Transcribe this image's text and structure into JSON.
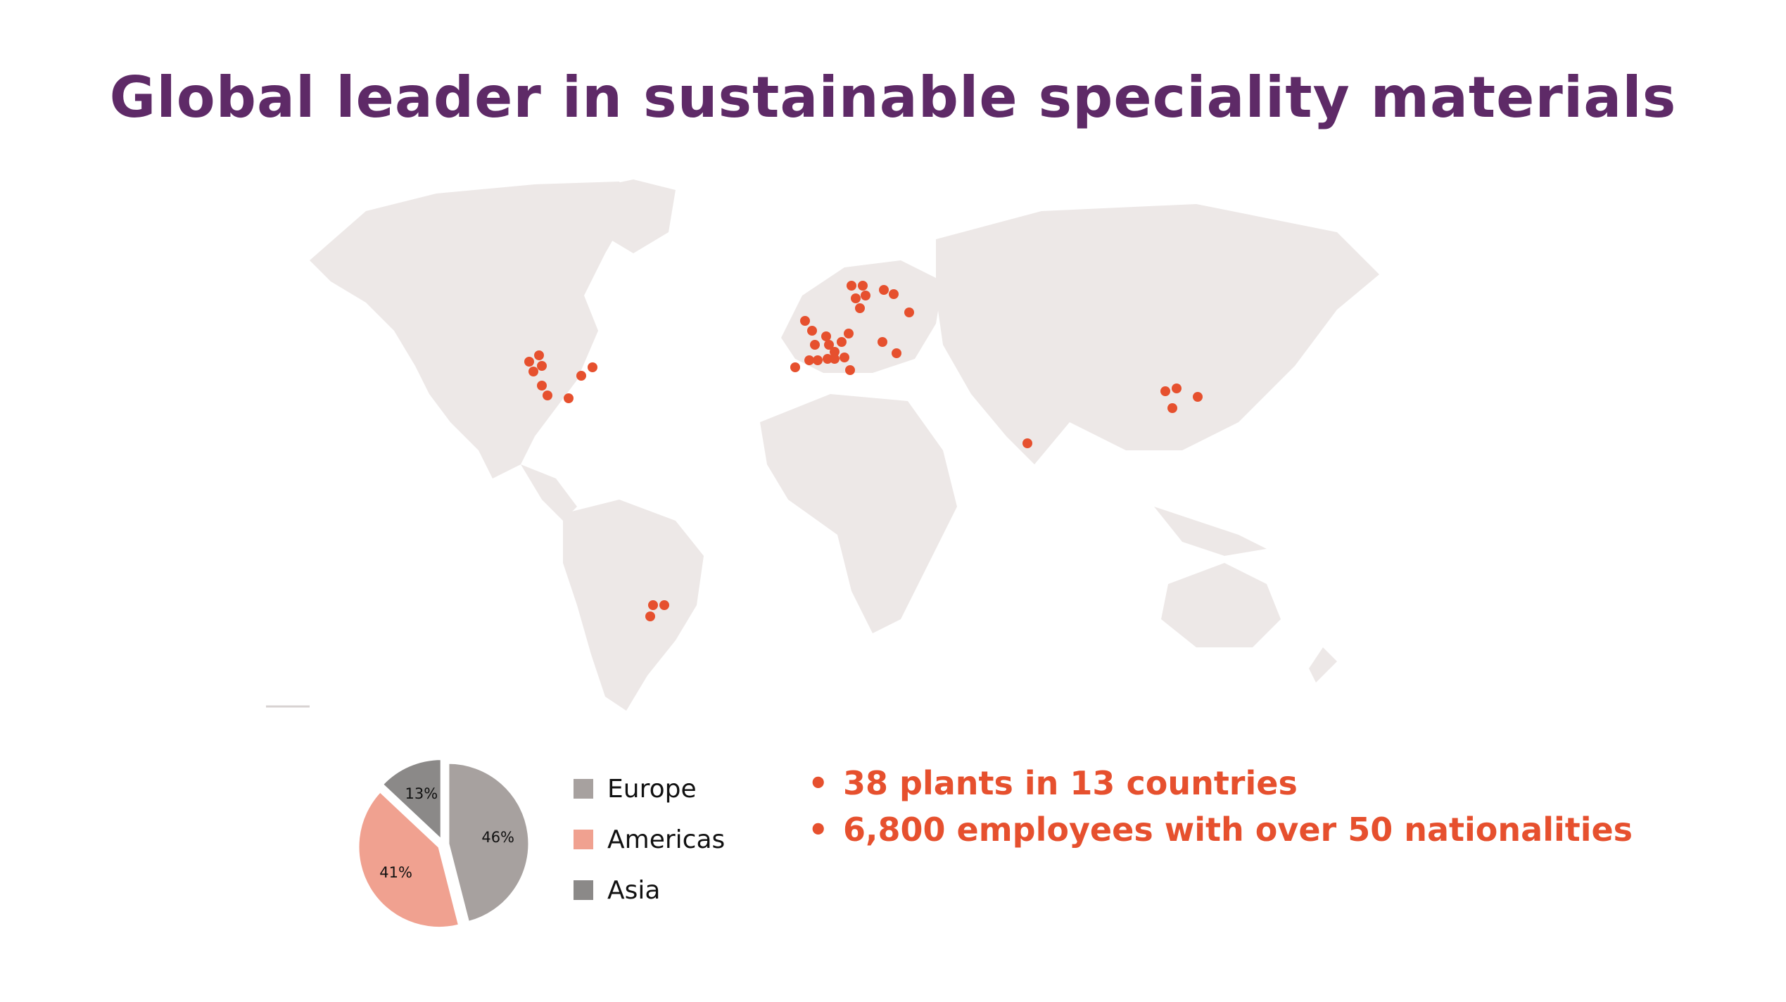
{
  "title": "Global leader in sustainable speciality materials",
  "colors": {
    "title": "#5e2a67",
    "accent": "#e6502e",
    "land": "#ede8e7",
    "europe": "#a7a19f",
    "americas": "#f0a190",
    "asia": "#8b8988"
  },
  "chart_data": {
    "type": "pie",
    "slices": [
      {
        "name": "Europe",
        "value": 46,
        "label": "46%"
      },
      {
        "name": "Americas",
        "value": 41,
        "label": "41%"
      },
      {
        "name": "Asia",
        "value": 13,
        "label": "13%"
      }
    ],
    "legend": [
      "Europe",
      "Americas",
      "Asia"
    ]
  },
  "legend": {
    "europe": "Europe",
    "americas": "Americas",
    "asia": "Asia"
  },
  "bullets": [
    "38 plants in 13 countries",
    "6,800 employees with over 50 nationalities"
  ],
  "bullet_symbol": "•"
}
